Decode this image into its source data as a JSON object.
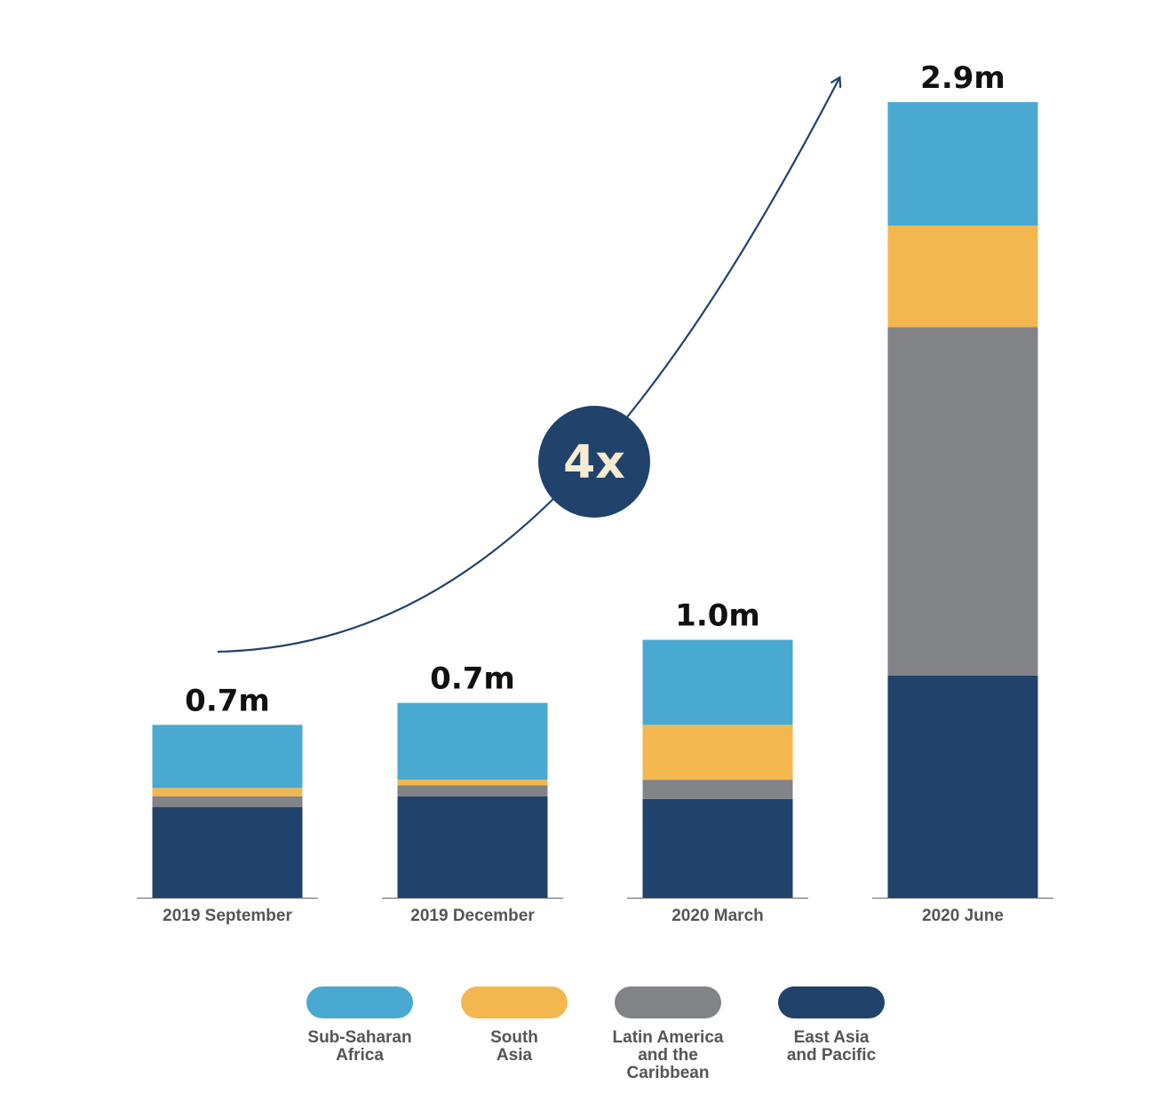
{
  "chart_data": {
    "type": "bar",
    "stacked": true,
    "categories": [
      "2019 September",
      "2019 December",
      "2020 March",
      "2020 June"
    ],
    "totals_labels": [
      "0.7m",
      "0.7m",
      "1.0m",
      "2.9m"
    ],
    "series": [
      {
        "name": "East Asia and Pacific",
        "label_lines": [
          "East Asia",
          "and Pacific"
        ],
        "color": "#21426b",
        "values": [
          0.33,
          0.37,
          0.36,
          0.81
        ]
      },
      {
        "name": "Latin America and the Caribbean",
        "label_lines": [
          "Latin America",
          "and the",
          "Caribbean"
        ],
        "color": "#828386",
        "values": [
          0.04,
          0.04,
          0.07,
          1.27
        ]
      },
      {
        "name": "South Asia",
        "label_lines": [
          "South",
          "Asia"
        ],
        "color": "#f2b84f",
        "values": [
          0.03,
          0.02,
          0.2,
          0.37
        ]
      },
      {
        "name": "Sub-Saharan Africa",
        "label_lines": [
          "Sub-Saharan",
          "Africa"
        ],
        "color": "#4aa9d0",
        "values": [
          0.23,
          0.28,
          0.31,
          0.45
        ]
      }
    ],
    "legend_order": [
      "Sub-Saharan Africa",
      "South Asia",
      "Latin America and the Caribbean",
      "East Asia and Pacific"
    ],
    "legend_position": "bottom",
    "grid": false,
    "ylim": [
      0,
      2.9
    ],
    "annotation": {
      "text": "4x",
      "color": "#21426b",
      "arrow": true
    }
  }
}
